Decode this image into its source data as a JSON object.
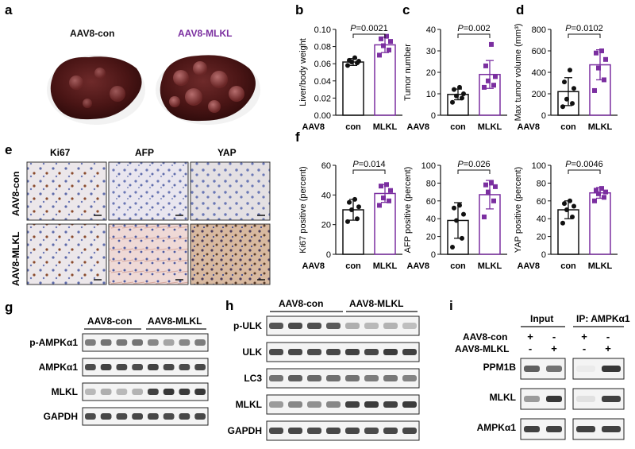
{
  "panels": {
    "a": {
      "letter": "a",
      "groups": [
        "AAV8-con",
        "AAV8-MLKL"
      ],
      "group_colors": [
        "#111111",
        "#7b2fa0"
      ]
    },
    "e": {
      "letter": "e",
      "columns": [
        "Ki67",
        "AFP",
        "YAP"
      ],
      "rows": [
        "AAV8-con",
        "AAV8-MLKL"
      ]
    },
    "g": {
      "letter": "g",
      "groups": [
        "AAV8-con",
        "AAV8-MLKL"
      ],
      "bands": [
        "p-AMPKα1",
        "AMPKα1",
        "MLKL",
        "GAPDH"
      ]
    },
    "h": {
      "letter": "h",
      "groups": [
        "AAV8-con",
        "AAV8-MLKL"
      ],
      "bands": [
        "p-ULK",
        "ULK",
        "LC3",
        "MLKL",
        "GAPDH"
      ]
    },
    "i": {
      "letter": "i",
      "sections": [
        "Input",
        "IP: AMPKα1"
      ],
      "conditions": [
        {
          "label": "AAV8-con",
          "marks": [
            "+",
            "-",
            "+",
            "-"
          ]
        },
        {
          "label": "AAV8-MLKL",
          "marks": [
            "-",
            "+",
            "-",
            "+"
          ]
        }
      ],
      "bands": [
        "PPM1B",
        "MLKL",
        "AMPKα1"
      ]
    }
  },
  "chart_data": [
    {
      "id": "b",
      "letter": "b",
      "type": "bar",
      "xaxis_title": "AAV8",
      "categories": [
        "con",
        "MLKL"
      ],
      "ylabel": "Liver/body weight",
      "ylim": [
        0,
        0.1
      ],
      "yticks": [
        "0.00",
        "0.02",
        "0.04",
        "0.06",
        "0.08",
        "0.10"
      ],
      "tick_values": [
        0,
        0.02,
        0.04,
        0.06,
        0.08,
        0.1
      ],
      "pvalue": "P=0.0021",
      "means": [
        0.062,
        0.082
      ],
      "sd": [
        0.004,
        0.009
      ],
      "points": [
        [
          0.058,
          0.061,
          0.062,
          0.063,
          0.064,
          0.067
        ],
        [
          0.07,
          0.076,
          0.081,
          0.086,
          0.089,
          0.092
        ]
      ]
    },
    {
      "id": "c",
      "letter": "c",
      "type": "bar",
      "xaxis_title": "AAV8",
      "categories": [
        "con",
        "MLKL"
      ],
      "ylabel": "Tumor number",
      "ylim": [
        0,
        40
      ],
      "yticks": [
        "0",
        "10",
        "20",
        "30",
        "40"
      ],
      "tick_values": [
        0,
        10,
        20,
        30,
        40
      ],
      "pvalue": "P=0.002",
      "means": [
        9.7,
        19
      ],
      "sd": [
        2.5,
        6.5
      ],
      "points": [
        [
          6,
          8,
          9,
          10,
          12,
          13
        ],
        [
          13,
          14,
          16,
          18,
          23,
          33
        ]
      ]
    },
    {
      "id": "d",
      "letter": "d",
      "type": "bar",
      "xaxis_title": "AAV8",
      "categories": [
        "con",
        "MLKL"
      ],
      "ylabel": "Max tumor volume (mm³)",
      "ylim": [
        0,
        800
      ],
      "yticks": [
        "0",
        "200",
        "400",
        "600",
        "800"
      ],
      "tick_values": [
        0,
        200,
        400,
        600,
        800
      ],
      "pvalue": "P=0.0102",
      "means": [
        220,
        470
      ],
      "sd": [
        130,
        140
      ],
      "points": [
        [
          80,
          110,
          150,
          250,
          310,
          420
        ],
        [
          230,
          330,
          440,
          520,
          580,
          600
        ]
      ]
    },
    {
      "id": "f1",
      "letter": "f",
      "type": "bar",
      "xaxis_title": "AAV8",
      "categories": [
        "con",
        "MLKL"
      ],
      "ylabel": "Ki67 positive (percent)",
      "ylim": [
        0,
        60
      ],
      "yticks": [
        "0",
        "20",
        "40",
        "60"
      ],
      "tick_values": [
        0,
        20,
        40,
        60
      ],
      "pvalue": "P=0.014",
      "means": [
        30,
        41
      ],
      "sd": [
        7,
        6
      ],
      "points": [
        [
          22,
          24,
          30,
          32,
          35,
          37
        ],
        [
          33,
          36,
          38,
          43,
          46,
          47
        ]
      ]
    },
    {
      "id": "f2",
      "letter": "",
      "type": "bar",
      "xaxis_title": "AAV8",
      "categories": [
        "con",
        "MLKL"
      ],
      "ylabel": "AFP positive (percent)",
      "ylim": [
        0,
        100
      ],
      "yticks": [
        "0",
        "20",
        "40",
        "60",
        "80",
        "100"
      ],
      "tick_values": [
        0,
        20,
        40,
        60,
        80,
        100
      ],
      "pvalue": "P=0.026",
      "means": [
        38,
        67
      ],
      "sd": [
        20,
        16
      ],
      "points": [
        [
          8,
          18,
          38,
          45,
          52,
          55
        ],
        [
          42,
          60,
          70,
          76,
          78,
          80
        ]
      ]
    },
    {
      "id": "f3",
      "letter": "",
      "type": "bar",
      "xaxis_title": "AAV8",
      "categories": [
        "con",
        "MLKL"
      ],
      "ylabel": "YAP positive (percent)",
      "ylim": [
        0,
        100
      ],
      "yticks": [
        "0",
        "20",
        "40",
        "60",
        "80",
        "100"
      ],
      "tick_values": [
        0,
        20,
        40,
        60,
        80,
        100
      ],
      "pvalue": "P=0.0046",
      "means": [
        50,
        69
      ],
      "sd": [
        10,
        6
      ],
      "points": [
        [
          35,
          42,
          50,
          54,
          57,
          60
        ],
        [
          60,
          64,
          68,
          70,
          72,
          74
        ]
      ]
    }
  ]
}
